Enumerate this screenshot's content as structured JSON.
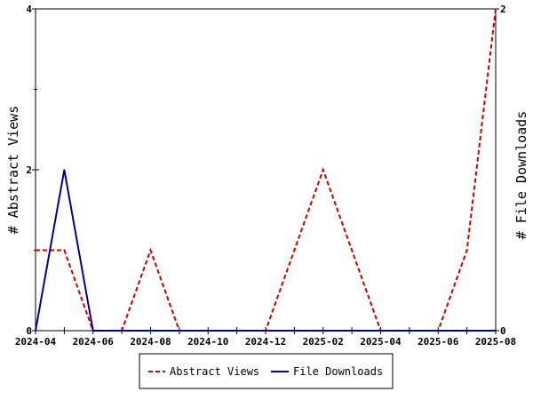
{
  "chart_data": {
    "type": "line",
    "x": [
      "2024-04",
      "2024-05",
      "2024-06",
      "2024-07",
      "2024-08",
      "2024-09",
      "2024-10",
      "2024-11",
      "2024-12",
      "2025-01",
      "2025-02",
      "2025-03",
      "2025-04",
      "2025-05",
      "2025-06",
      "2025-07",
      "2025-08"
    ],
    "x_tick_labels": [
      "2024-04",
      "2024-06",
      "2024-08",
      "2024-10",
      "2024-12",
      "2025-02",
      "2025-04",
      "2025-06",
      "2025-08"
    ],
    "series": [
      {
        "name": "Abstract Views",
        "axis": "left",
        "color": "#cc0000",
        "dash": "dashed",
        "values": [
          1,
          1,
          0,
          0,
          1,
          0,
          0,
          0,
          0,
          1,
          2,
          1,
          0,
          0,
          0,
          1,
          4
        ]
      },
      {
        "name": "File Downloads",
        "axis": "right",
        "color": "#000099",
        "dash": "solid",
        "values": [
          0,
          1,
          0,
          0,
          0,
          0,
          0,
          0,
          0,
          0,
          0,
          0,
          0,
          0,
          0,
          0,
          0
        ]
      }
    ],
    "ylabel": "# Abstract Views",
    "ylabel_right": "# File Downloads",
    "ylim": [
      0,
      4
    ],
    "ylim_right": [
      0,
      2
    ],
    "yticks": [
      "0",
      "2",
      "4"
    ],
    "yticks_right": [
      "0",
      "2"
    ],
    "grid": false,
    "legend_position": "bottom"
  }
}
